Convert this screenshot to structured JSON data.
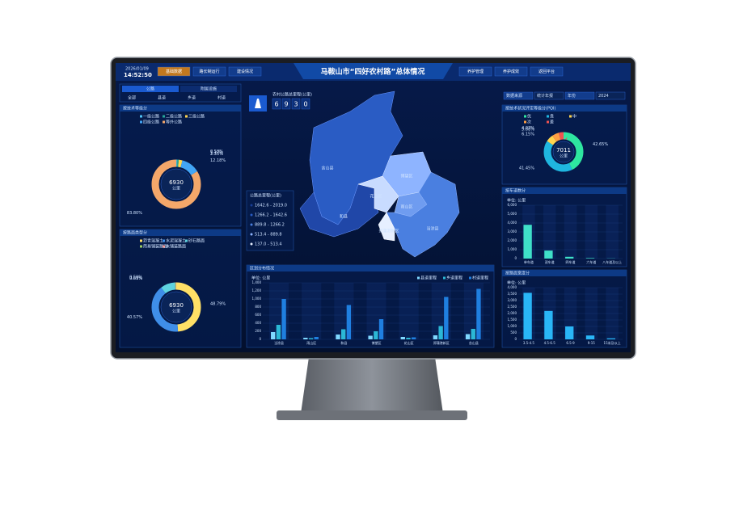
{
  "header": {
    "title": "马鞍山市“四好农村路”总体情况",
    "date": "2026/01/09",
    "time": "14:52:50",
    "nav_left": [
      "基础数据",
      "路长制运行",
      "建设情况"
    ],
    "nav_right": [
      "养护管理",
      "养护成效",
      "返回平台"
    ]
  },
  "left": {
    "tabs": [
      "公路",
      "附属设施"
    ],
    "subtabs": [
      "全部",
      "县道",
      "乡道",
      "村道"
    ],
    "panels": [
      {
        "title": "按技术等级分",
        "center": "6930",
        "unit": "公里",
        "legend": [
          "一级公路",
          "二级公路",
          "三级公路",
          "四级公路",
          "等外公路"
        ],
        "colors": [
          "#4fc3f7",
          "#26a69a",
          "#ffd54f",
          "#42a5f5",
          "#f4a76a"
        ],
        "values": [
          0.5,
          1.17,
          2.35,
          12.18,
          83.8
        ],
        "value_labels": [
          "0.50%",
          "1.17%",
          "2.35%",
          "12.18%",
          "83.80%"
        ]
      },
      {
        "title": "按路面类型分",
        "center": "6930",
        "unit": "公里",
        "legend": [
          "沥青混凝土",
          "水泥混凝土",
          "砂石路面",
          "简易铺装路面",
          "未铺装路面"
        ],
        "colors": [
          "#ffe066",
          "#3f8ee8",
          "#5fd3e0",
          "#9ccc65",
          "#ef9a9a"
        ],
        "values": [
          48.79,
          40.57,
          9.63,
          0.5,
          0.51
        ],
        "value_labels": [
          "48.79%",
          "40.57%",
          "9.63%",
          "0.50%",
          "0.51%"
        ]
      }
    ]
  },
  "center": {
    "total_label": "农村公路总里程(公里)",
    "total_digits": [
      "6",
      "9",
      "3",
      "0"
    ],
    "map_legend_title": "公路总里程(公里)",
    "map_legend": [
      "1642.6 - 2019.0",
      "1266.2 - 1642.6",
      "889.8 - 1266.2",
      "513.4 - 889.8",
      "137.0 - 513.4"
    ],
    "regions": [
      "含山县",
      "和县",
      "博望区",
      "花山区",
      "雨山区",
      "当涂县",
      "郑蒲港新区"
    ],
    "chart": {
      "title": "区划分布情况",
      "unit": "单位: 公里",
      "categories": [
        "当涂县",
        "雨山区",
        "和县",
        "博望区",
        "花山区",
        "郑蒲港新区",
        "含山县"
      ],
      "series": [
        {
          "name": "县道里程",
          "color": "#7fd8ff",
          "values": [
            180,
            40,
            120,
            90,
            60,
            100,
            130
          ]
        },
        {
          "name": "乡道里程",
          "color": "#2bb8d6",
          "values": [
            360,
            30,
            250,
            200,
            40,
            330,
            260
          ]
        },
        {
          "name": "村道里程",
          "color": "#1f7fe0",
          "values": [
            1000,
            60,
            850,
            500,
            50,
            1050,
            1250
          ]
        }
      ],
      "ylim": [
        0,
        1400
      ],
      "yticks": [
        0,
        200,
        400,
        600,
        800,
        {
          "value": 1000,
          "label": "1,000"
        },
        {
          "value": 1200,
          "label": "1,200"
        },
        {
          "value": 1400,
          "label": "1,400"
        }
      ]
    }
  },
  "right": {
    "selectors": [
      "数据来源",
      "统计年报",
      "年份",
      "2024"
    ],
    "pqi": {
      "title": "按技术状况评定等级分(PQI)",
      "center": "7011",
      "unit": "公里",
      "legend": [
        "优",
        "良",
        "中",
        "次",
        "差"
      ],
      "colors": [
        "#2ee6a0",
        "#1fb6e0",
        "#ffd54f",
        "#ff9f43",
        "#ef5350"
      ],
      "values": [
        42.65,
        41.45,
        6.15,
        5.68,
        4.07
      ],
      "value_labels": [
        "42.65%",
        "41.45%",
        "6.15%",
        "5.68%",
        "4.07%"
      ]
    },
    "lanes": {
      "title": "按车道数分",
      "unit": "单位: 公里",
      "categories": [
        "单车道",
        "双车道",
        "四车道",
        "六车道",
        "八车道及以上"
      ],
      "values": [
        3800,
        900,
        200,
        60,
        20
      ],
      "color": "#3fe0c8",
      "ylim": [
        0,
        6000
      ],
      "yticks": [
        0,
        {
          "value": 1000,
          "label": "1,000"
        },
        {
          "value": 2000,
          "label": "2,000"
        },
        {
          "value": 3000,
          "label": "3,000"
        },
        {
          "value": 4000,
          "label": "4,000"
        },
        {
          "value": 5000,
          "label": "5,000"
        },
        {
          "value": 6000,
          "label": "6,000"
        }
      ]
    },
    "width": {
      "title": "按路面宽度分",
      "unit": "单位: 公里",
      "categories": [
        "3.5-4.5",
        "4.5-6.5",
        "6.5-9",
        "9-15",
        "15米及以上"
      ],
      "values": [
        3600,
        2200,
        1000,
        300,
        80
      ],
      "color": "#29b6f6",
      "ylim": [
        0,
        4000
      ],
      "yticks": [
        0,
        500,
        {
          "value": 1000,
          "label": "1,000"
        },
        {
          "value": 1500,
          "label": "1,500"
        },
        {
          "value": 2000,
          "label": "2,000"
        },
        {
          "value": 2500,
          "label": "2,500"
        },
        {
          "value": 3000,
          "label": "3,000"
        },
        {
          "value": 3500,
          "label": "3,500"
        },
        {
          "value": 4000,
          "label": "4,000"
        }
      ]
    }
  }
}
